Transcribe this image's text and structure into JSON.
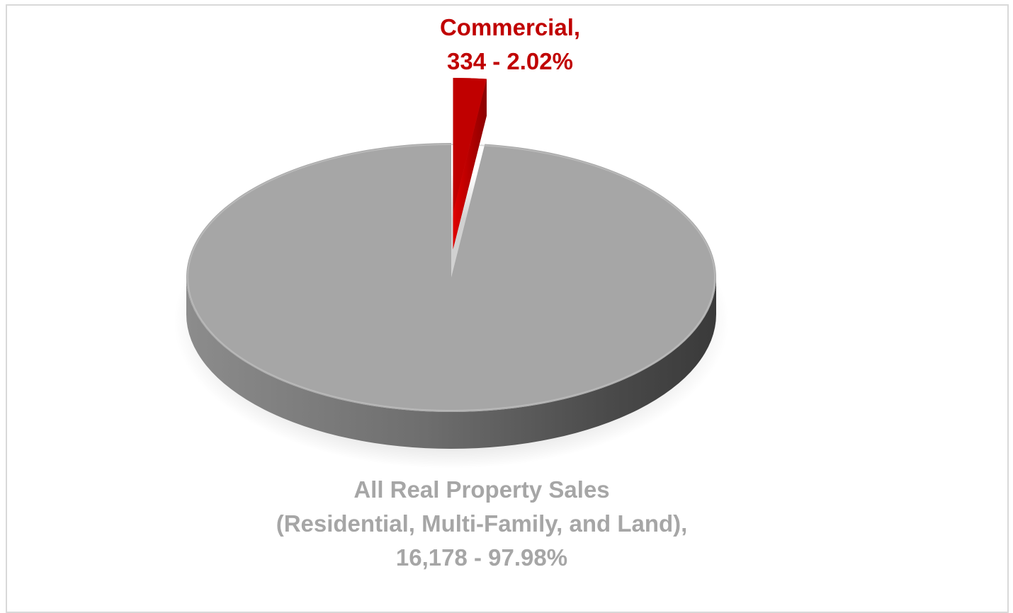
{
  "chart_data": {
    "type": "pie",
    "title": "",
    "three_d": true,
    "slices": [
      {
        "label_lines": [
          "Commercial,",
          "334 - 2.02%"
        ],
        "category": "Commercial",
        "value": 334,
        "percent": 2.02,
        "color": "#c00000",
        "exploded": true
      },
      {
        "label_lines": [
          "All Real Property Sales",
          "(Residential, Multi-Family, and Land),",
          "16,178 - 97.98%"
        ],
        "category": "All Real Property Sales (Residential, Multi-Family, and Land)",
        "value": 16178,
        "percent": 97.98,
        "color": "#a6a6a6",
        "exploded": false
      }
    ],
    "legend": "none"
  }
}
